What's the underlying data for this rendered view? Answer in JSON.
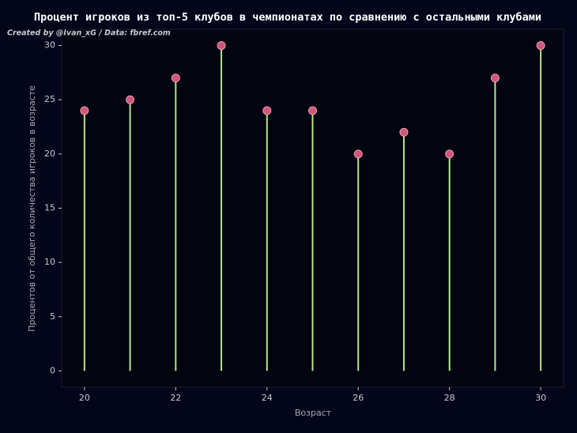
{
  "chart_data": {
    "type": "lollipop",
    "title": "Процент игроков из топ-5 клубов в чемпионатах по сравнению с остальными клубами",
    "subtitle": "Created by @Ivan_xG / Data: fbref.com",
    "x_label": "Возраст",
    "y_label": "Процентов от общего количества игроков в возрасте",
    "x": [
      20,
      21,
      22,
      23,
      24,
      25,
      26,
      27,
      28,
      29,
      30
    ],
    "values": [
      24,
      25,
      27,
      30,
      24,
      24,
      20,
      22,
      20,
      27,
      30
    ],
    "stem_color": "#b5e48c",
    "marker_color": "#d0567a",
    "xlim": [
      19.5,
      30.5
    ],
    "ylim": [
      -1.5,
      31.5
    ],
    "xticks": [
      20,
      22,
      24,
      26,
      28,
      30
    ],
    "yticks": [
      0,
      5,
      10,
      15,
      20,
      25,
      30
    ],
    "grid": false
  }
}
